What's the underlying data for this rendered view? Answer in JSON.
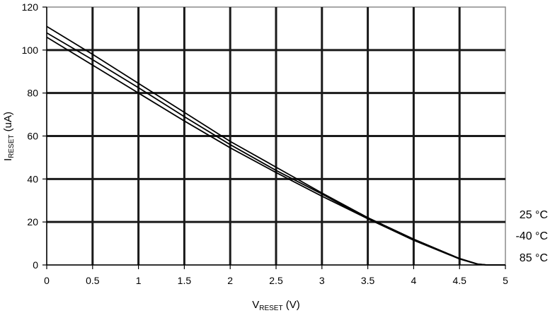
{
  "chart_data": {
    "type": "line",
    "x_axis": {
      "label_main": "V",
      "label_sub": "RESET",
      "label_unit": " (V)",
      "min": 0,
      "max": 5,
      "step": 0.5,
      "ticks": [
        "0",
        "0.5",
        "1",
        "1.5",
        "2",
        "2.5",
        "3",
        "3.5",
        "4",
        "4.5",
        "5"
      ]
    },
    "y_axis": {
      "label_main": "I",
      "label_sub": "RESET",
      "label_unit": " (uA)",
      "min": 0,
      "max": 120,
      "step": 20,
      "ticks": [
        "0",
        "20",
        "40",
        "60",
        "80",
        "100",
        "120"
      ]
    },
    "grid": true,
    "legend_position": "right",
    "series": [
      {
        "name": "25 °C",
        "color": "#000000",
        "x": [
          0,
          0.5,
          1,
          1.5,
          2,
          2.5,
          3,
          3.5,
          4,
          4.5,
          4.7,
          4.8,
          5
        ],
        "y": [
          111,
          98,
          84.5,
          71,
          57.5,
          45.5,
          33.5,
          22,
          12,
          3,
          0.4,
          0,
          0
        ]
      },
      {
        "name": "-40 °C",
        "color": "#000000",
        "x": [
          0,
          0.5,
          1,
          1.5,
          2,
          2.5,
          3,
          3.5,
          4,
          4.5,
          4.7,
          4.8,
          5
        ],
        "y": [
          108,
          95.5,
          82.5,
          69,
          56,
          44,
          33,
          21.5,
          11.8,
          3,
          0.4,
          0,
          0
        ]
      },
      {
        "name": "85 °C",
        "color": "#000000",
        "x": [
          0,
          0.5,
          1,
          1.5,
          2,
          2.5,
          3,
          3.5,
          4,
          4.5,
          4.7,
          4.8,
          5
        ],
        "y": [
          106,
          93,
          80,
          67,
          54.5,
          43,
          32,
          21.5,
          11.5,
          2.8,
          0.3,
          0,
          0
        ]
      }
    ]
  }
}
